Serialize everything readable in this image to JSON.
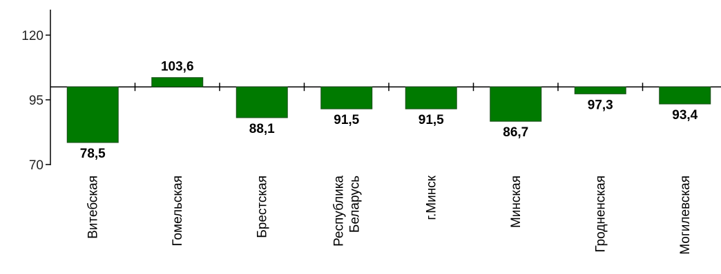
{
  "chart_data": {
    "type": "bar",
    "baseline": 100,
    "ylim": [
      70,
      130
    ],
    "yticks": [
      70,
      95,
      120
    ],
    "categories": [
      [
        "Витебская"
      ],
      [
        "Гомельская"
      ],
      [
        "Брестская"
      ],
      [
        "Республика",
        "Беларусь"
      ],
      [
        "г.Минск"
      ],
      [
        "Минская"
      ],
      [
        "Гродненская"
      ],
      [
        "Могилевская"
      ]
    ],
    "values": [
      78.5,
      103.6,
      88.1,
      91.5,
      91.5,
      86.7,
      97.3,
      93.4
    ],
    "value_labels": [
      "78,5",
      "103,6",
      "88,1",
      "91,5",
      "91,5",
      "86,7",
      "97,3",
      "93,4"
    ],
    "bar_color": "#007a00",
    "title": "",
    "xlabel": "",
    "ylabel": ""
  }
}
